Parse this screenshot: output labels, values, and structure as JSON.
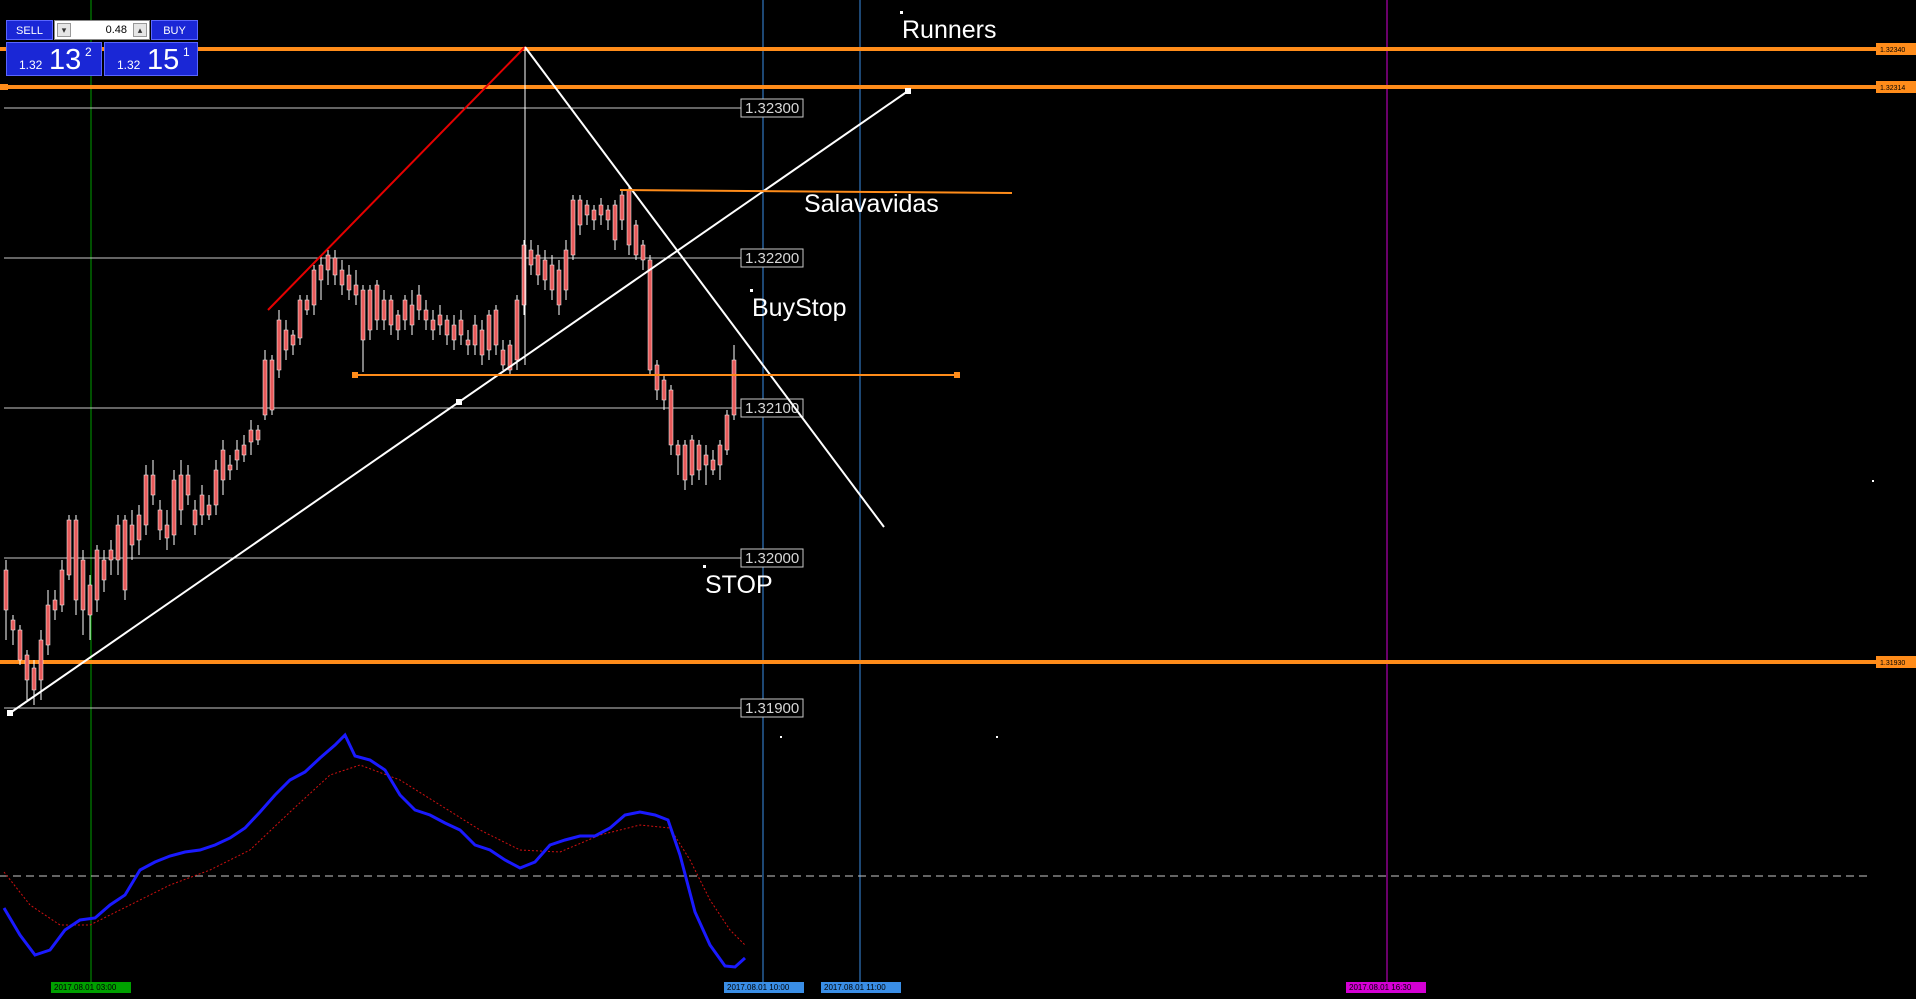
{
  "trade_panel": {
    "sell_label": "SELL",
    "buy_label": "BUY",
    "lot": "0.48",
    "lot_down_icon": "triangle-down-icon",
    "lot_up_icon": "triangle-up-icon",
    "sell_quote": {
      "prefix": "1.32",
      "big": "13",
      "sup": "2"
    },
    "buy_quote": {
      "prefix": "1.32",
      "big": "15",
      "sup": "1"
    }
  },
  "price_grid": [
    {
      "label": "1.32300"
    },
    {
      "label": "1.32200"
    },
    {
      "label": "1.32100"
    },
    {
      "label": "1.32000"
    },
    {
      "label": "1.31900"
    }
  ],
  "orange_levels": [
    {
      "label": "1.32340"
    },
    {
      "label": "1.32314"
    },
    {
      "label": "1.31930"
    }
  ],
  "annotations": {
    "runners": "Runners",
    "salvavidas": "Salavavidas",
    "buystop": "BuyStop",
    "stop": "STOP"
  },
  "time_markers": [
    {
      "label": "2017.08.01 03:00",
      "color": "#00a000"
    },
    {
      "label": "2017.08.01 10:00",
      "color": "#3a8ee6"
    },
    {
      "label": "2017.08.01 11:00",
      "color": "#3a8ee6"
    },
    {
      "label": "2017.08.01 16:30",
      "color": "#d400d4"
    }
  ],
  "colors": {
    "background": "#000000",
    "bull_candle": "#8fbef0",
    "bear_candle": "#e65a5a",
    "orange_line": "#ff8c1a",
    "grid_line": "#c8c8c8",
    "trend_line": "#ffffff",
    "red_line": "#e60000",
    "indicator_main": "#1a1aff",
    "indicator_signal": "#d01010"
  }
}
